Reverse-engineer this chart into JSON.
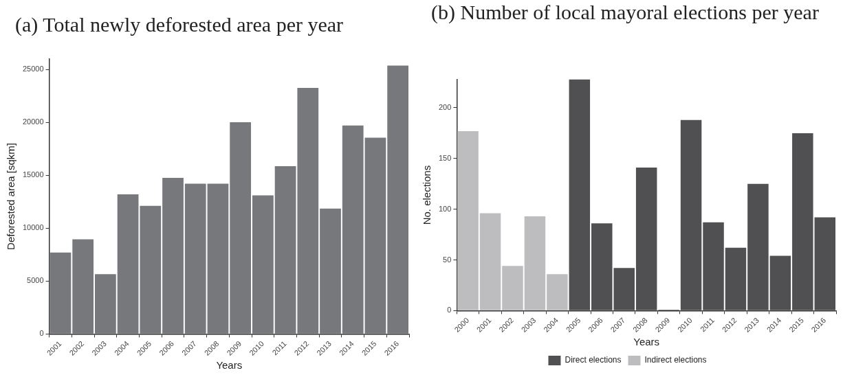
{
  "chart_data": [
    {
      "type": "bar",
      "title": "(a) Total newly deforested area per year",
      "xlabel": "Years",
      "ylabel": "Deforested area [sqkm]",
      "categories": [
        "2001",
        "2002",
        "2003",
        "2004",
        "2005",
        "2006",
        "2007",
        "2008",
        "2009",
        "2010",
        "2011",
        "2012",
        "2013",
        "2014",
        "2015",
        "2016"
      ],
      "values": [
        7700,
        8950,
        5650,
        13200,
        12100,
        14750,
        14200,
        14200,
        20000,
        13100,
        15850,
        23250,
        11850,
        19700,
        18550,
        25350
      ],
      "color": "#77787c",
      "ylim": [
        0,
        26000
      ],
      "yticks": [
        0,
        5000,
        10000,
        15000,
        20000,
        25000
      ],
      "grid": false,
      "legend": false
    },
    {
      "type": "bar",
      "title": "(b) Number of local mayoral elections per year",
      "xlabel": "Years",
      "ylabel": "No. elections",
      "categories": [
        "2000",
        "2001",
        "2002",
        "2003",
        "2004",
        "2005",
        "2006",
        "2007",
        "2008",
        "2009",
        "2010",
        "2011",
        "2012",
        "2013",
        "2014",
        "2015",
        "2016"
      ],
      "series": [
        {
          "name": "Direct elections",
          "color": "#505052",
          "values": [
            null,
            null,
            null,
            null,
            null,
            228,
            86,
            42,
            141,
            1,
            188,
            87,
            62,
            125,
            54,
            175,
            92
          ]
        },
        {
          "name": "Indirect elections",
          "color": "#bdbdbf",
          "values": [
            177,
            96,
            44,
            93,
            36,
            null,
            null,
            null,
            null,
            null,
            null,
            null,
            null,
            null,
            null,
            null,
            null
          ]
        }
      ],
      "ylim": [
        0,
        228
      ],
      "yticks": [
        0,
        50,
        100,
        150,
        200
      ],
      "grid": false,
      "legend": "bottom"
    }
  ]
}
